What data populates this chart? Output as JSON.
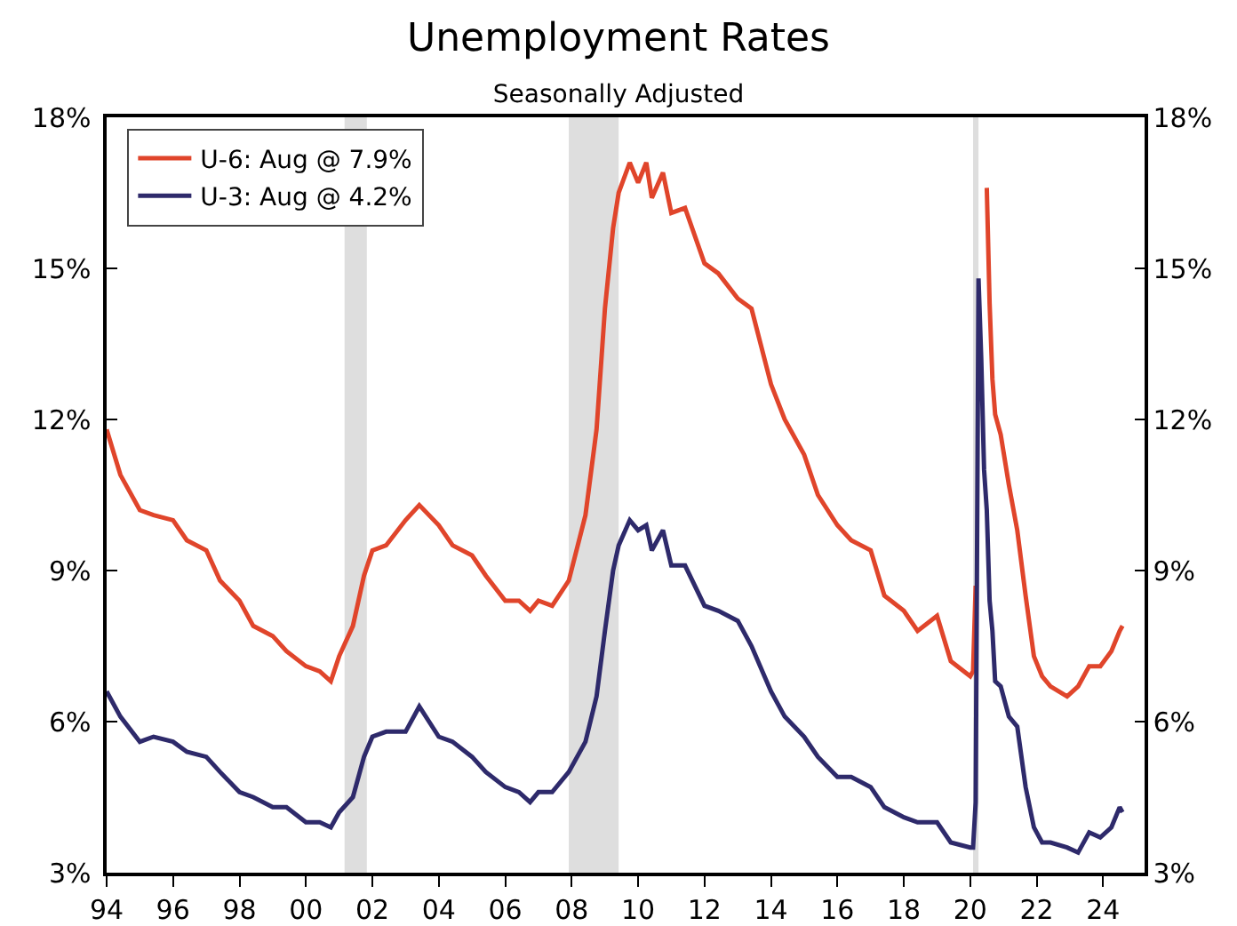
{
  "chart_data": {
    "type": "line",
    "title": "Unemployment Rates",
    "subtitle": "Seasonally Adjusted",
    "xlim": [
      "1994-01",
      "2025-04"
    ],
    "xticks": [
      {
        "value": "1994-01",
        "label": "94"
      },
      {
        "value": "1996-01",
        "label": "96"
      },
      {
        "value": "1998-01",
        "label": "98"
      },
      {
        "value": "2000-01",
        "label": "00"
      },
      {
        "value": "2002-01",
        "label": "02"
      },
      {
        "value": "2004-01",
        "label": "04"
      },
      {
        "value": "2006-01",
        "label": "06"
      },
      {
        "value": "2008-01",
        "label": "08"
      },
      {
        "value": "2010-01",
        "label": "10"
      },
      {
        "value": "2012-01",
        "label": "12"
      },
      {
        "value": "2014-01",
        "label": "14"
      },
      {
        "value": "2016-01",
        "label": "16"
      },
      {
        "value": "2018-01",
        "label": "18"
      },
      {
        "value": "2020-01",
        "label": "20"
      },
      {
        "value": "2022-01",
        "label": "22"
      },
      {
        "value": "2024-01",
        "label": "24"
      }
    ],
    "ylim": [
      3,
      18
    ],
    "yticks": [
      {
        "value": 3,
        "label": "3%"
      },
      {
        "value": 6,
        "label": "6%"
      },
      {
        "value": 9,
        "label": "9%"
      },
      {
        "value": 12,
        "label": "12%"
      },
      {
        "value": 15,
        "label": "15%"
      },
      {
        "value": 18,
        "label": "18%"
      }
    ],
    "y2lim": [
      3,
      18
    ],
    "y2ticks": [
      {
        "value": 3,
        "label": "3%"
      },
      {
        "value": 6,
        "label": "6%"
      },
      {
        "value": 9,
        "label": "9%"
      },
      {
        "value": 12,
        "label": "12%"
      },
      {
        "value": 15,
        "label": "15%"
      },
      {
        "value": 18,
        "label": "18%"
      }
    ],
    "x": [
      "1994-01",
      "1994-06",
      "1995-01",
      "1995-06",
      "1996-01",
      "1996-06",
      "1997-01",
      "1997-06",
      "1998-01",
      "1998-06",
      "1999-01",
      "1999-06",
      "2000-01",
      "2000-06",
      "2000-10",
      "2001-01",
      "2001-06",
      "2001-10",
      "2002-01",
      "2002-06",
      "2003-01",
      "2003-06",
      "2004-01",
      "2004-06",
      "2005-01",
      "2005-06",
      "2006-01",
      "2006-06",
      "2006-10",
      "2007-01",
      "2007-06",
      "2007-12",
      "2008-06",
      "2008-10",
      "2009-01",
      "2009-04",
      "2009-06",
      "2009-10",
      "2010-01",
      "2010-04",
      "2010-06",
      "2010-10",
      "2011-01",
      "2011-06",
      "2012-01",
      "2012-06",
      "2013-01",
      "2013-06",
      "2014-01",
      "2014-06",
      "2015-01",
      "2015-06",
      "2016-01",
      "2016-06",
      "2017-01",
      "2017-06",
      "2018-01",
      "2018-06",
      "2019-01",
      "2019-06",
      "2020-01",
      "2020-02",
      "2020-03",
      "2020-04",
      "2020-05",
      "2020-06",
      "2020-07",
      "2020-08",
      "2020-09",
      "2020-10",
      "2020-12",
      "2021-03",
      "2021-06",
      "2021-09",
      "2021-12",
      "2022-03",
      "2022-06",
      "2022-12",
      "2023-04",
      "2023-08",
      "2023-12",
      "2024-04",
      "2024-07",
      "2024-08"
    ],
    "series": [
      {
        "name": "U-6: Aug @ 7.9%",
        "color": "#e0452b",
        "values": [
          11.8,
          10.9,
          10.2,
          10.1,
          10.0,
          9.6,
          9.4,
          8.8,
          8.4,
          7.9,
          7.7,
          7.4,
          7.1,
          7.0,
          6.8,
          7.3,
          7.9,
          8.9,
          9.4,
          9.5,
          10.0,
          10.3,
          9.9,
          9.5,
          9.3,
          8.9,
          8.4,
          8.4,
          8.2,
          8.4,
          8.3,
          8.8,
          10.1,
          11.8,
          14.2,
          15.8,
          16.5,
          17.1,
          16.7,
          17.1,
          16.4,
          16.9,
          16.1,
          16.2,
          15.1,
          14.9,
          14.4,
          14.2,
          12.7,
          12.0,
          11.3,
          10.5,
          9.9,
          9.6,
          9.4,
          8.5,
          8.2,
          7.8,
          8.1,
          7.2,
          6.9,
          7.0,
          8.7,
          null,
          null,
          null,
          16.6,
          14.3,
          12.8,
          12.1,
          11.7,
          10.7,
          9.8,
          8.5,
          7.3,
          6.9,
          6.7,
          6.5,
          6.7,
          7.1,
          7.1,
          7.4,
          7.8,
          7.9
        ]
      },
      {
        "name": "U-3: Aug @ 4.2%",
        "color": "#2e2a6b",
        "values": [
          6.6,
          6.1,
          5.6,
          5.7,
          5.6,
          5.4,
          5.3,
          5.0,
          4.6,
          4.5,
          4.3,
          4.3,
          4.0,
          4.0,
          3.9,
          4.2,
          4.5,
          5.3,
          5.7,
          5.8,
          5.8,
          6.3,
          5.7,
          5.6,
          5.3,
          5.0,
          4.7,
          4.6,
          4.4,
          4.6,
          4.6,
          5.0,
          5.6,
          6.5,
          7.8,
          9.0,
          9.5,
          10.0,
          9.8,
          9.9,
          9.4,
          9.8,
          9.1,
          9.1,
          8.3,
          8.2,
          8.0,
          7.5,
          6.6,
          6.1,
          5.7,
          5.3,
          4.9,
          4.9,
          4.7,
          4.3,
          4.1,
          4.0,
          4.0,
          3.6,
          3.5,
          3.5,
          4.4,
          14.8,
          13.2,
          11.0,
          10.2,
          8.4,
          7.8,
          6.8,
          6.7,
          6.1,
          5.9,
          4.7,
          3.9,
          3.6,
          3.6,
          3.5,
          3.4,
          3.8,
          3.7,
          3.9,
          4.3,
          4.2
        ]
      }
    ],
    "bands": [
      {
        "axis": "x",
        "from": "2001-03",
        "to": "2001-11",
        "color": "#dedede"
      },
      {
        "axis": "x",
        "from": "2007-12",
        "to": "2009-06",
        "color": "#dedede"
      },
      {
        "axis": "x",
        "from": "2020-02",
        "to": "2020-04",
        "color": "#dedede"
      }
    ],
    "legend": "top left",
    "grid": false
  }
}
